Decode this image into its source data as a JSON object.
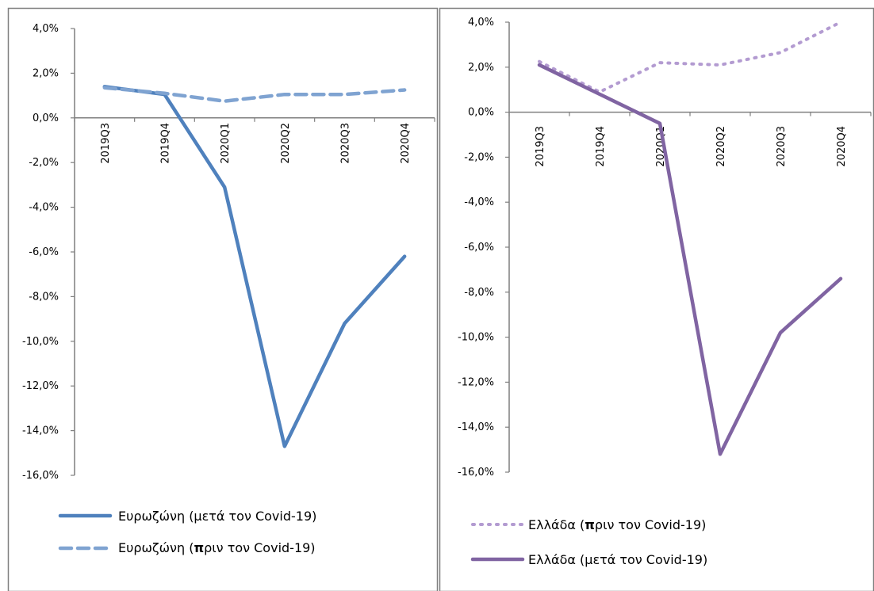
{
  "chart_data": [
    {
      "type": "line",
      "title": "",
      "xlabel": "",
      "ylabel": "",
      "categories": [
        "2019Q3",
        "2019Q4",
        "2020Q1",
        "2020Q2",
        "2020Q3",
        "2020Q4"
      ],
      "ylim": [
        -16,
        4
      ],
      "yticks": [
        4,
        2,
        0,
        -2,
        -4,
        -6,
        -8,
        -10,
        -12,
        -14,
        -16
      ],
      "ytick_labels": [
        "4,0%",
        "2,0%",
        "0,0%",
        "-2,0%",
        "-4,0%",
        "-6,0%",
        "-8,0%",
        "-10,0%",
        "-12,0%",
        "-14,0%",
        "-16,0%"
      ],
      "grid": false,
      "legend_position": "bottom",
      "series": [
        {
          "name": "Ευρωζώνη (μετά τον Covid-19)",
          "name_parts": [
            "Ευρωζώνη (μετά τον Covid-19)"
          ],
          "values": [
            1.4,
            1.05,
            -3.1,
            -14.7,
            -9.2,
            -6.2
          ],
          "color": "#4f81bd",
          "style": "solid"
        },
        {
          "name": "Ευρωζώνη (πριν τον Covid-19)",
          "name_parts": [
            "Ευρωζώνη (",
            "π",
            "ριν τον Covid-19)"
          ],
          "values": [
            1.35,
            1.1,
            0.75,
            1.05,
            1.05,
            1.25
          ],
          "color": "#7fa3d1",
          "style": "dashed"
        }
      ]
    },
    {
      "type": "line",
      "title": "",
      "xlabel": "",
      "ylabel": "",
      "categories": [
        "2019Q3",
        "2019Q4",
        "2020Q1",
        "2020Q2",
        "2020Q3",
        "2020Q4"
      ],
      "ylim": [
        -16,
        4
      ],
      "yticks": [
        4,
        2,
        0,
        -2,
        -4,
        -6,
        -8,
        -10,
        -12,
        -14,
        -16
      ],
      "ytick_labels": [
        "4,0%",
        "2,0%",
        "0,0%",
        "-2,0%",
        "-4,0%",
        "-6,0%",
        "-8,0%",
        "-10,0%",
        "-12,0%",
        "-14,0%",
        "-16,0%"
      ],
      "grid": false,
      "legend_position": "bottom",
      "series": [
        {
          "name": "Ελλάδα (πριν τον Covid-19)",
          "name_parts": [
            "Ελλάδα (",
            "π",
            "ριν τον Covid-19)"
          ],
          "values": [
            2.25,
            0.9,
            2.2,
            2.1,
            2.65,
            4.0
          ],
          "color": "#b39bd1",
          "style": "dotted"
        },
        {
          "name": "Ελλάδα (μετά τον Covid-19)",
          "name_parts": [
            "Ελλάδα (μετά τον Covid-19)"
          ],
          "values": [
            2.1,
            0.8,
            -0.5,
            -15.2,
            -9.8,
            -7.4
          ],
          "color": "#8064a2",
          "style": "solid"
        }
      ]
    }
  ]
}
